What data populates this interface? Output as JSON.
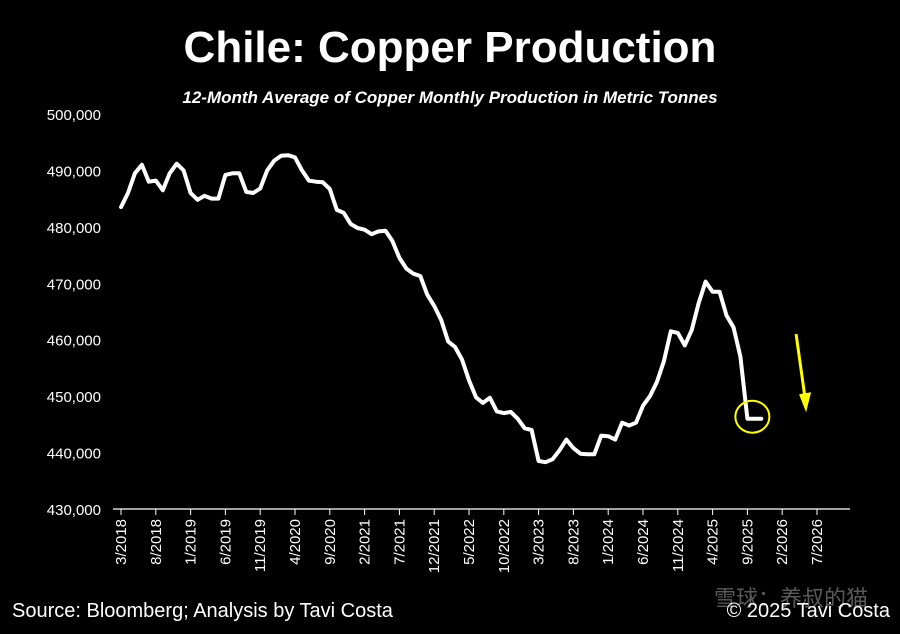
{
  "title": "Chile: Copper Production",
  "subtitle": "12-Month Average of Copper Monthly Production in Metric Tonnes",
  "source": "Source: Bloomberg; Analysis by Tavi Costa",
  "credit": "© 2025 Tavi Costa",
  "watermark": "雪球：养叔的猫",
  "colors": {
    "background": "#000000",
    "line": "#ffffff",
    "axis": "#ffffff",
    "highlight": "#ffff00"
  },
  "icons": {
    "marker": "circle-outline",
    "trend": "down-arrow"
  },
  "chart_data": {
    "type": "line",
    "title": "Chile: Copper Production",
    "subtitle": "12-Month Average of Copper Monthly Production in Metric Tonnes",
    "xlabel": "",
    "ylabel": "",
    "grid": false,
    "legend": "none",
    "ylim": [
      430000,
      500000
    ],
    "xlim": [
      "2018-03",
      "2026-12"
    ],
    "y_ticks": [
      430000,
      440000,
      450000,
      460000,
      470000,
      480000,
      490000,
      500000
    ],
    "y_tick_labels": [
      "430,000",
      "440,000",
      "450,000",
      "460,000",
      "470,000",
      "480,000",
      "490,000",
      "500,000"
    ],
    "x_ticks": [
      "2018-03",
      "2018-08",
      "2019-01",
      "2019-06",
      "2019-11",
      "2020-04",
      "2020-09",
      "2021-02",
      "2021-07",
      "2021-12",
      "2022-05",
      "2022-10",
      "2023-03",
      "2023-08",
      "2024-01",
      "2024-06",
      "2024-11",
      "2025-04",
      "2025-09",
      "2026-02",
      "2026-07"
    ],
    "x_tick_labels": [
      "3/2018",
      "8/2018",
      "1/2019",
      "6/2019",
      "11/2019",
      "4/2020",
      "9/2020",
      "2/2021",
      "7/2021",
      "12/2021",
      "5/2022",
      "10/2022",
      "3/2023",
      "8/2023",
      "1/2024",
      "6/2024",
      "11/2024",
      "4/2025",
      "9/2025",
      "2/2026",
      "7/2026"
    ],
    "series": [
      {
        "x": [
          "2018-03",
          "2018-04",
          "2018-05",
          "2018-06",
          "2018-07",
          "2018-08",
          "2018-09",
          "2018-10",
          "2018-11",
          "2018-12",
          "2019-01",
          "2019-02",
          "2019-03",
          "2019-04",
          "2019-05",
          "2019-06",
          "2019-07",
          "2019-08",
          "2019-09",
          "2019-10",
          "2019-11",
          "2019-12",
          "2020-01",
          "2020-02",
          "2020-03",
          "2020-04",
          "2020-05",
          "2020-06",
          "2020-07",
          "2020-08",
          "2020-09",
          "2020-10",
          "2020-11",
          "2020-12",
          "2021-01",
          "2021-02",
          "2021-03",
          "2021-04",
          "2021-05",
          "2021-06",
          "2021-07",
          "2021-08",
          "2021-09",
          "2021-10",
          "2021-11",
          "2021-12",
          "2022-01",
          "2022-02",
          "2022-03",
          "2022-04",
          "2022-05",
          "2022-06",
          "2022-07",
          "2022-08",
          "2022-09",
          "2022-10",
          "2022-11",
          "2022-12",
          "2023-01",
          "2023-02",
          "2023-03",
          "2023-04",
          "2023-05",
          "2023-06",
          "2023-07",
          "2023-08",
          "2023-09",
          "2023-10",
          "2023-11",
          "2023-12",
          "2024-01",
          "2024-02",
          "2024-03",
          "2024-04",
          "2024-05",
          "2024-06",
          "2024-07",
          "2024-08",
          "2024-09",
          "2024-10",
          "2024-11",
          "2024-12",
          "2025-01",
          "2025-02",
          "2025-03",
          "2025-04",
          "2025-05",
          "2025-06",
          "2025-07",
          "2025-08",
          "2025-09",
          "2025-10",
          "2025-11"
        ],
        "values": [
          483500,
          486000,
          489500,
          491000,
          488000,
          488200,
          486500,
          489500,
          491200,
          490000,
          486000,
          484800,
          485500,
          485000,
          485000,
          489200,
          489500,
          489500,
          486200,
          486000,
          486800,
          490000,
          491700,
          492600,
          492700,
          492300,
          490000,
          488200,
          488000,
          487900,
          486700,
          483000,
          482500,
          480500,
          479800,
          479500,
          478700,
          479200,
          479300,
          477500,
          474500,
          472600,
          471700,
          471300,
          468000,
          466000,
          463500,
          459700,
          458700,
          456500,
          452800,
          449800,
          448800,
          449700,
          447300,
          447000,
          447200,
          446000,
          444300,
          444000,
          438500,
          438300,
          438800,
          440400,
          442300,
          440800,
          439800,
          439700,
          439700,
          443000,
          442900,
          442300,
          445300,
          444800,
          445300,
          448300,
          450000,
          452500,
          456200,
          461500,
          461200,
          459000,
          461700,
          466500,
          470300,
          468500,
          468500,
          464300,
          462200,
          457000,
          446000,
          446000,
          446000
        ]
      }
    ],
    "annotations": [
      {
        "type": "circle",
        "x": "2025-10",
        "y": 446000,
        "color": "#ffff00"
      },
      {
        "type": "arrow",
        "direction": "down",
        "x": "2026-05",
        "y_from": 461000,
        "y_to": 447500,
        "color": "#ffff00"
      }
    ]
  }
}
